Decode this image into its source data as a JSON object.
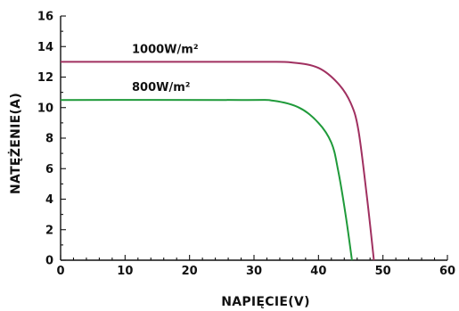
{
  "chart_data": {
    "type": "line",
    "xlabel": "NAPIĘCIE(V)",
    "ylabel": "NATĘŻENIE(A)",
    "xlim": [
      0,
      60
    ],
    "ylim": [
      0,
      16
    ],
    "x_ticks": [
      0,
      10,
      20,
      30,
      40,
      50,
      60
    ],
    "y_ticks": [
      0,
      2,
      4,
      6,
      8,
      10,
      12,
      14,
      16
    ],
    "x_minor_step": 2,
    "y_minor_step": 1,
    "grid": false,
    "legend": "inline labels above curves",
    "series": [
      {
        "name": "1000W/m²",
        "color": "#a03060",
        "points": [
          [
            0,
            13.0
          ],
          [
            30,
            13.0
          ],
          [
            36,
            12.95
          ],
          [
            40,
            12.6
          ],
          [
            43,
            11.6
          ],
          [
            45,
            10.3
          ],
          [
            46.2,
            8.5
          ],
          [
            47.5,
            4.2
          ],
          [
            48.6,
            0
          ]
        ]
      },
      {
        "name": "800W/m²",
        "color": "#1f9a3a",
        "points": [
          [
            0,
            10.5
          ],
          [
            28,
            10.5
          ],
          [
            33,
            10.45
          ],
          [
            37,
            10.0
          ],
          [
            40,
            9.0
          ],
          [
            42,
            7.7
          ],
          [
            43,
            6.0
          ],
          [
            44.2,
            3.0
          ],
          [
            45.2,
            0
          ]
        ]
      }
    ]
  }
}
